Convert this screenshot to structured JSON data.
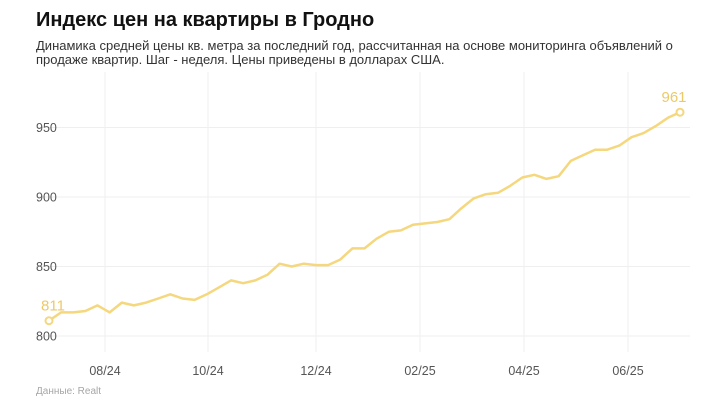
{
  "title": "Индекс цен на квартиры в Гродно",
  "subtitle": "Динамика средней цены кв. метра за последний год, рассчитанная на основе мониторинга объявлений о продаже квартир. Шаг - неделя. Цены приведены в долларах США.",
  "source": "Данные: Realt",
  "colors": {
    "line": "#f5d77e",
    "label": "#ecc968",
    "grid": "#efefef",
    "tick_text": "#555555"
  },
  "chart_data": {
    "type": "line",
    "title": "Индекс цен на квартиры в Гродно",
    "xlabel": "",
    "ylabel": "",
    "x_tick_labels": [
      "08/24",
      "10/24",
      "12/24",
      "02/25",
      "04/25",
      "06/25"
    ],
    "y_ticks": [
      800,
      850,
      900,
      950
    ],
    "ylim": [
      795,
      975
    ],
    "grid": {
      "horizontal": true,
      "vertical": true
    },
    "series": [
      {
        "values": [
          811,
          817,
          817,
          818,
          822,
          817,
          824,
          822,
          824,
          827,
          830,
          827,
          826,
          830,
          835,
          840,
          838,
          840,
          844,
          852,
          850,
          852,
          851,
          851,
          855,
          863,
          863,
          870,
          875,
          876,
          880,
          881,
          882,
          884,
          892,
          899,
          902,
          903,
          908,
          914,
          916,
          913,
          915,
          926,
          930,
          934,
          934,
          937,
          943,
          946,
          951,
          957,
          961
        ],
        "annotations": [
          {
            "index": 0,
            "text": "811"
          },
          {
            "index": 52,
            "text": "961"
          }
        ]
      }
    ]
  }
}
